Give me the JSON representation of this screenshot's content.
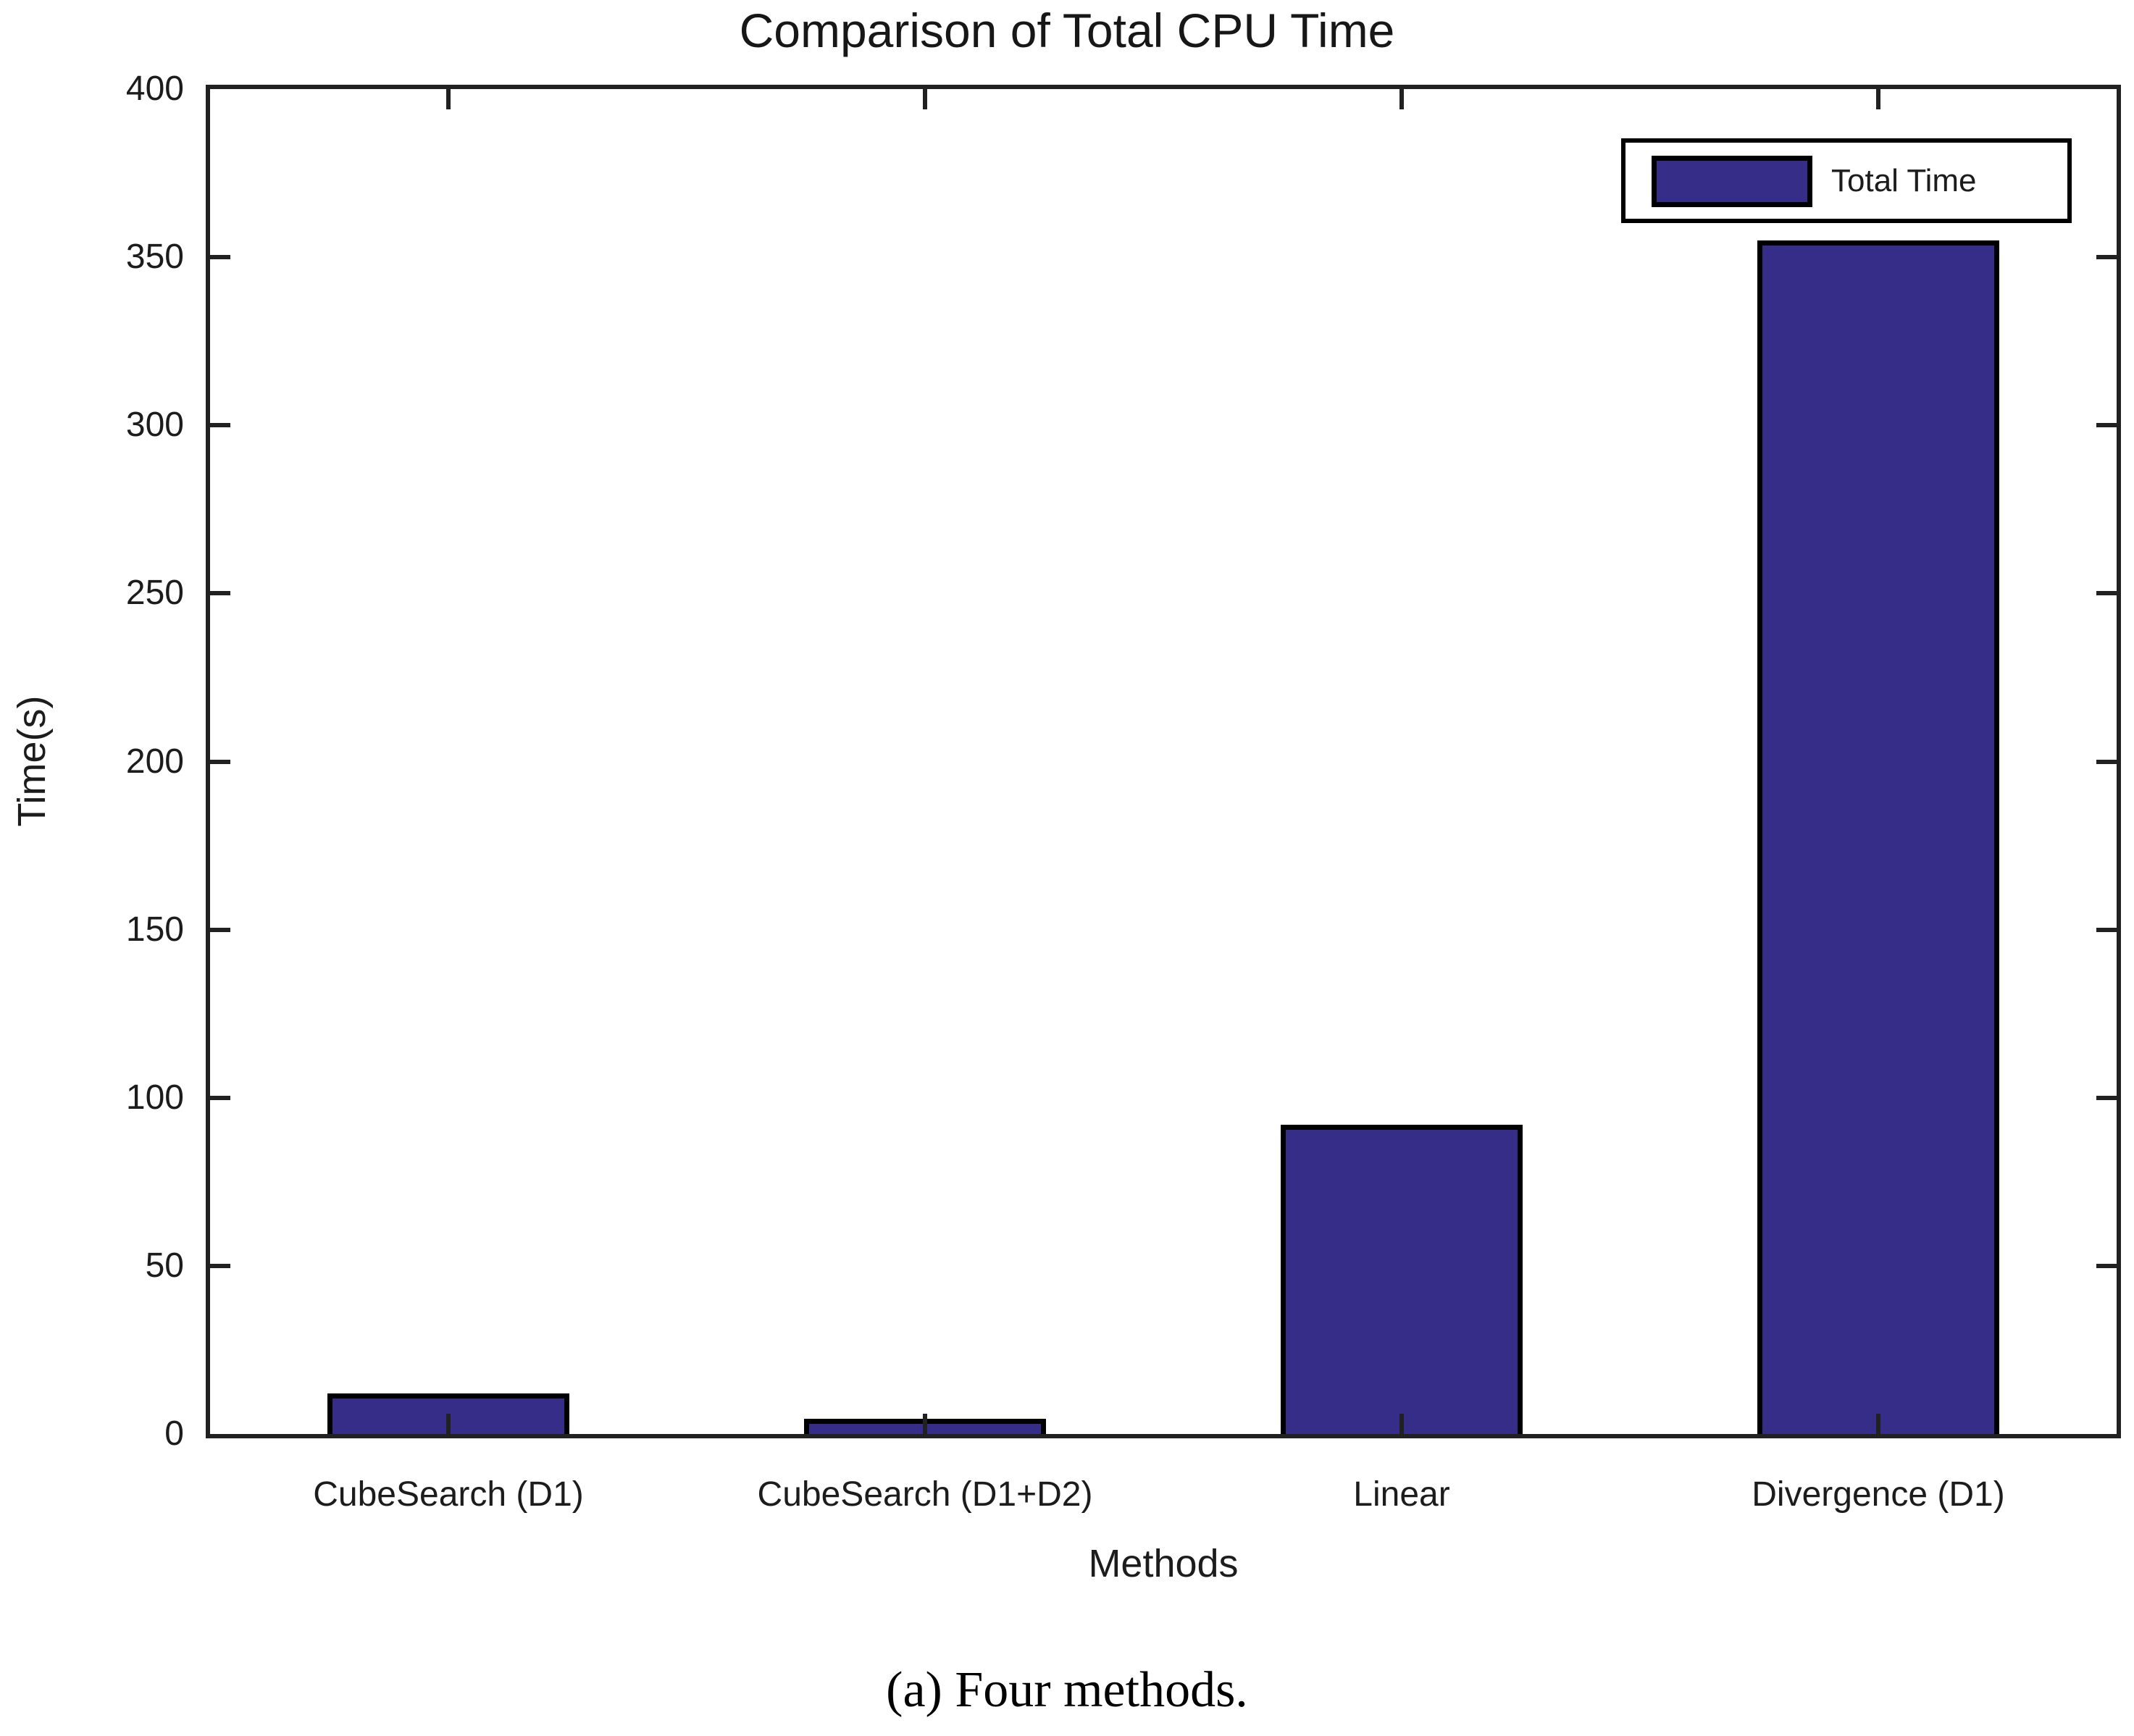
{
  "figure": {
    "caption": "(a) Four methods."
  },
  "chart_data": {
    "type": "bar",
    "title": "Comparison of Total CPU Time",
    "xlabel": "Methods",
    "ylabel": "Time(s)",
    "categories": [
      "CubeSearch (D1)",
      "CubeSearch (D1+D2)",
      "Linear",
      "Divergence (D1)"
    ],
    "series": [
      {
        "name": "Total Time",
        "values": [
          12,
          4.5,
          92,
          355
        ]
      }
    ],
    "ylim": [
      0,
      400
    ],
    "yticks": [
      0,
      50,
      100,
      150,
      200,
      250,
      300,
      350,
      400
    ],
    "grid": false,
    "legend": {
      "position": "top-right",
      "entries": [
        "Total Time"
      ]
    },
    "colors": {
      "bar_fill": "#352D87",
      "bar_edge": "#000000",
      "axis": "#212121",
      "text": "#1C1C1C"
    }
  }
}
